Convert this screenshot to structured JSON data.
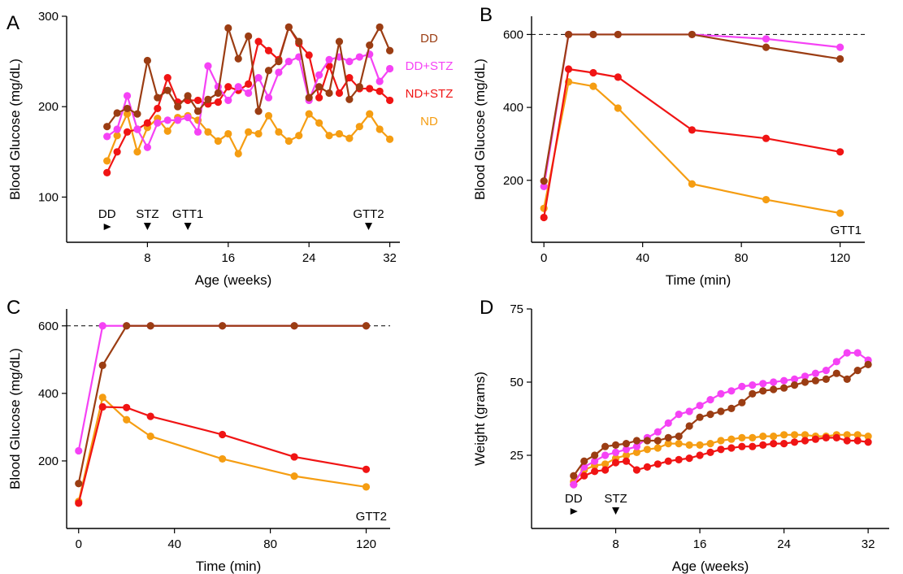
{
  "colors": {
    "DD": "#9b3d13",
    "DD+STZ": "#f542f5",
    "ND+STZ": "#f01414",
    "ND": "#f59d12"
  },
  "chart_data": [
    {
      "panel": "A",
      "type": "line",
      "xlabel": "Age (weeks)",
      "ylabel": "Blood Glucose (mg/dL)",
      "xlim": [
        0,
        33
      ],
      "ylim": [
        50,
        300
      ],
      "xticks": [
        8,
        16,
        24,
        32
      ],
      "yticks": [
        100,
        200,
        300
      ],
      "legend": {
        "placement": "right",
        "entries": [
          "DD",
          "DD+STZ",
          "ND+STZ",
          "ND"
        ]
      },
      "annotations": [
        {
          "text": "DD",
          "x": 4,
          "marker": "right"
        },
        {
          "text": "STZ",
          "x": 8,
          "marker": "down"
        },
        {
          "text": "GTT1",
          "x": 12,
          "marker": "down"
        },
        {
          "text": "GTT2",
          "x": 29.9,
          "marker": "down"
        }
      ],
      "series": [
        {
          "name": "DD",
          "x": [
            4,
            5,
            6,
            7,
            8,
            9,
            10,
            11,
            12,
            13,
            14,
            15,
            16,
            17,
            18,
            19,
            20,
            21,
            22,
            23,
            24,
            25,
            26,
            27,
            28,
            29,
            30,
            31,
            32
          ],
          "y": [
            178,
            193,
            198,
            192,
            251,
            210,
            218,
            200,
            212,
            195,
            208,
            215,
            287,
            253,
            278,
            195,
            240,
            250,
            288,
            272,
            210,
            222,
            215,
            272,
            208,
            222,
            268,
            288,
            262
          ]
        },
        {
          "name": "DD+STZ",
          "x": [
            4,
            5,
            6,
            7,
            8,
            9,
            10,
            11,
            12,
            13,
            14,
            15,
            16,
            17,
            18,
            19,
            20,
            21,
            22,
            23,
            24,
            25,
            26,
            27,
            28,
            29,
            30,
            31,
            32
          ],
          "y": [
            167,
            175,
            212,
            175,
            155,
            182,
            185,
            185,
            188,
            172,
            245,
            222,
            207,
            222,
            215,
            232,
            210,
            238,
            250,
            255,
            207,
            235,
            252,
            255,
            250,
            255,
            258,
            228,
            242
          ]
        },
        {
          "name": "ND+STZ",
          "x": [
            4,
            5,
            6,
            7,
            8,
            9,
            10,
            11,
            12,
            13,
            14,
            15,
            16,
            17,
            18,
            19,
            20,
            21,
            22,
            23,
            24,
            25,
            26,
            27,
            28,
            29,
            30,
            31,
            32
          ],
          "y": [
            127,
            150,
            172,
            175,
            182,
            198,
            232,
            205,
            207,
            207,
            203,
            205,
            222,
            218,
            225,
            272,
            262,
            252,
            288,
            270,
            257,
            210,
            245,
            215,
            232,
            220,
            220,
            217,
            207
          ]
        },
        {
          "name": "ND",
          "x": [
            4,
            5,
            6,
            7,
            8,
            9,
            10,
            11,
            12,
            13,
            14,
            15,
            16,
            17,
            18,
            19,
            20,
            21,
            22,
            23,
            24,
            25,
            26,
            27,
            28,
            29,
            30,
            31,
            32
          ],
          "y": [
            140,
            168,
            192,
            150,
            177,
            187,
            173,
            188,
            190,
            185,
            172,
            162,
            170,
            148,
            172,
            170,
            190,
            172,
            162,
            168,
            192,
            182,
            168,
            170,
            165,
            178,
            192,
            175,
            164
          ]
        }
      ]
    },
    {
      "panel": "B",
      "type": "line",
      "xlabel": "Time (min)",
      "ylabel": "Blood Glucose (mg/dL)",
      "xlim": [
        -5,
        130
      ],
      "ylim": [
        30,
        650
      ],
      "xticks": [
        0,
        40,
        80,
        120
      ],
      "yticks": [
        200,
        400,
        600
      ],
      "reference_line": 600,
      "annotations": [
        {
          "text": "GTT1"
        }
      ],
      "series": [
        {
          "name": "DD",
          "x": [
            0,
            10,
            20,
            30,
            60,
            90,
            120
          ],
          "y": [
            198,
            600,
            600,
            600,
            600,
            565,
            533
          ]
        },
        {
          "name": "DD+STZ",
          "x": [
            0,
            10,
            20,
            30,
            60,
            90,
            120
          ],
          "y": [
            183,
            600,
            600,
            600,
            600,
            588,
            565
          ]
        },
        {
          "name": "ND+STZ",
          "x": [
            0,
            10,
            20,
            30,
            60,
            90,
            120
          ],
          "y": [
            98,
            505,
            495,
            483,
            338,
            315,
            278
          ]
        },
        {
          "name": "ND",
          "x": [
            0,
            10,
            20,
            30,
            60,
            90,
            120
          ],
          "y": [
            123,
            470,
            458,
            398,
            190,
            147,
            110
          ]
        }
      ]
    },
    {
      "panel": "C",
      "type": "line",
      "xlabel": "Time (min)",
      "ylabel": "Blood Glucose (mg/dL)",
      "xlim": [
        -5,
        130
      ],
      "ylim": [
        0,
        650
      ],
      "xticks": [
        0,
        40,
        80,
        120
      ],
      "yticks": [
        200,
        400,
        600
      ],
      "reference_line": 600,
      "annotations": [
        {
          "text": "GTT2"
        }
      ],
      "series": [
        {
          "name": "DD",
          "x": [
            0,
            10,
            20,
            30,
            60,
            90,
            120
          ],
          "y": [
            133,
            483,
            600,
            600,
            600,
            600,
            600
          ]
        },
        {
          "name": "DD+STZ",
          "x": [
            0,
            10,
            20,
            30,
            60,
            90,
            120
          ],
          "y": [
            230,
            600,
            600,
            600,
            600,
            600,
            600
          ]
        },
        {
          "name": "ND+STZ",
          "x": [
            0,
            10,
            20,
            30,
            60,
            90,
            120
          ],
          "y": [
            75,
            360,
            358,
            332,
            278,
            212,
            175
          ]
        },
        {
          "name": "ND",
          "x": [
            0,
            10,
            20,
            30,
            60,
            90,
            120
          ],
          "y": [
            80,
            388,
            322,
            273,
            206,
            155,
            123
          ]
        }
      ]
    },
    {
      "panel": "D",
      "type": "line",
      "xlabel": "Age (weeks)",
      "ylabel": "Weight (grams)",
      "xlim": [
        0,
        34
      ],
      "ylim": [
        0,
        75
      ],
      "xticks": [
        8,
        16,
        24,
        32
      ],
      "yticks": [
        25,
        50,
        75
      ],
      "annotations": [
        {
          "text": "DD",
          "x": 4,
          "marker": "right"
        },
        {
          "text": "STZ",
          "x": 8,
          "marker": "down"
        }
      ],
      "series": [
        {
          "name": "DD",
          "x": [
            4,
            5,
            6,
            7,
            8,
            9,
            10,
            11,
            12,
            13,
            14,
            15,
            16,
            17,
            18,
            19,
            20,
            21,
            22,
            23,
            24,
            25,
            26,
            27,
            28,
            29,
            30,
            31,
            32
          ],
          "y": [
            18,
            23,
            25,
            28,
            28.5,
            29,
            30,
            30,
            30,
            31,
            31.5,
            35,
            38,
            39,
            40,
            41,
            43,
            46,
            47,
            47.5,
            48,
            49,
            50,
            50.5,
            51,
            53,
            51,
            54,
            56
          ]
        },
        {
          "name": "DD+STZ",
          "x": [
            4,
            5,
            6,
            7,
            8,
            9,
            10,
            11,
            12,
            13,
            14,
            15,
            16,
            17,
            18,
            19,
            20,
            21,
            22,
            23,
            24,
            25,
            26,
            27,
            28,
            29,
            30,
            31,
            32
          ],
          "y": [
            15,
            21,
            23,
            25,
            26,
            27,
            28,
            31,
            33,
            36,
            39,
            40,
            42,
            44,
            46,
            47,
            48.5,
            49,
            49.5,
            50,
            50.5,
            51,
            52,
            53,
            54,
            57,
            60,
            60,
            57.5
          ]
        },
        {
          "name": "ND+STZ",
          "x": [
            4,
            5,
            6,
            7,
            8,
            9,
            10,
            11,
            12,
            13,
            14,
            15,
            16,
            17,
            18,
            19,
            20,
            21,
            22,
            23,
            24,
            25,
            26,
            27,
            28,
            29,
            30,
            31,
            32
          ],
          "y": [
            15,
            18,
            19.5,
            20,
            22.5,
            23,
            20,
            21,
            22,
            23,
            23.5,
            24,
            25,
            26,
            27,
            27.5,
            28,
            28,
            28.5,
            29,
            29,
            29.5,
            30,
            30.5,
            31,
            31,
            30,
            30,
            29.5
          ]
        },
        {
          "name": "ND",
          "x": [
            4,
            5,
            6,
            7,
            8,
            9,
            10,
            11,
            12,
            13,
            14,
            15,
            16,
            17,
            18,
            19,
            20,
            21,
            22,
            23,
            24,
            25,
            26,
            27,
            28,
            29,
            30,
            31,
            32
          ],
          "y": [
            16,
            20,
            21.5,
            22,
            24,
            25,
            26,
            27,
            27.5,
            29,
            29,
            28.5,
            28.5,
            29,
            30,
            30.5,
            31,
            31,
            31.5,
            31.5,
            32,
            32,
            32,
            31.5,
            31.5,
            32,
            32,
            32,
            31.5
          ]
        }
      ]
    }
  ]
}
